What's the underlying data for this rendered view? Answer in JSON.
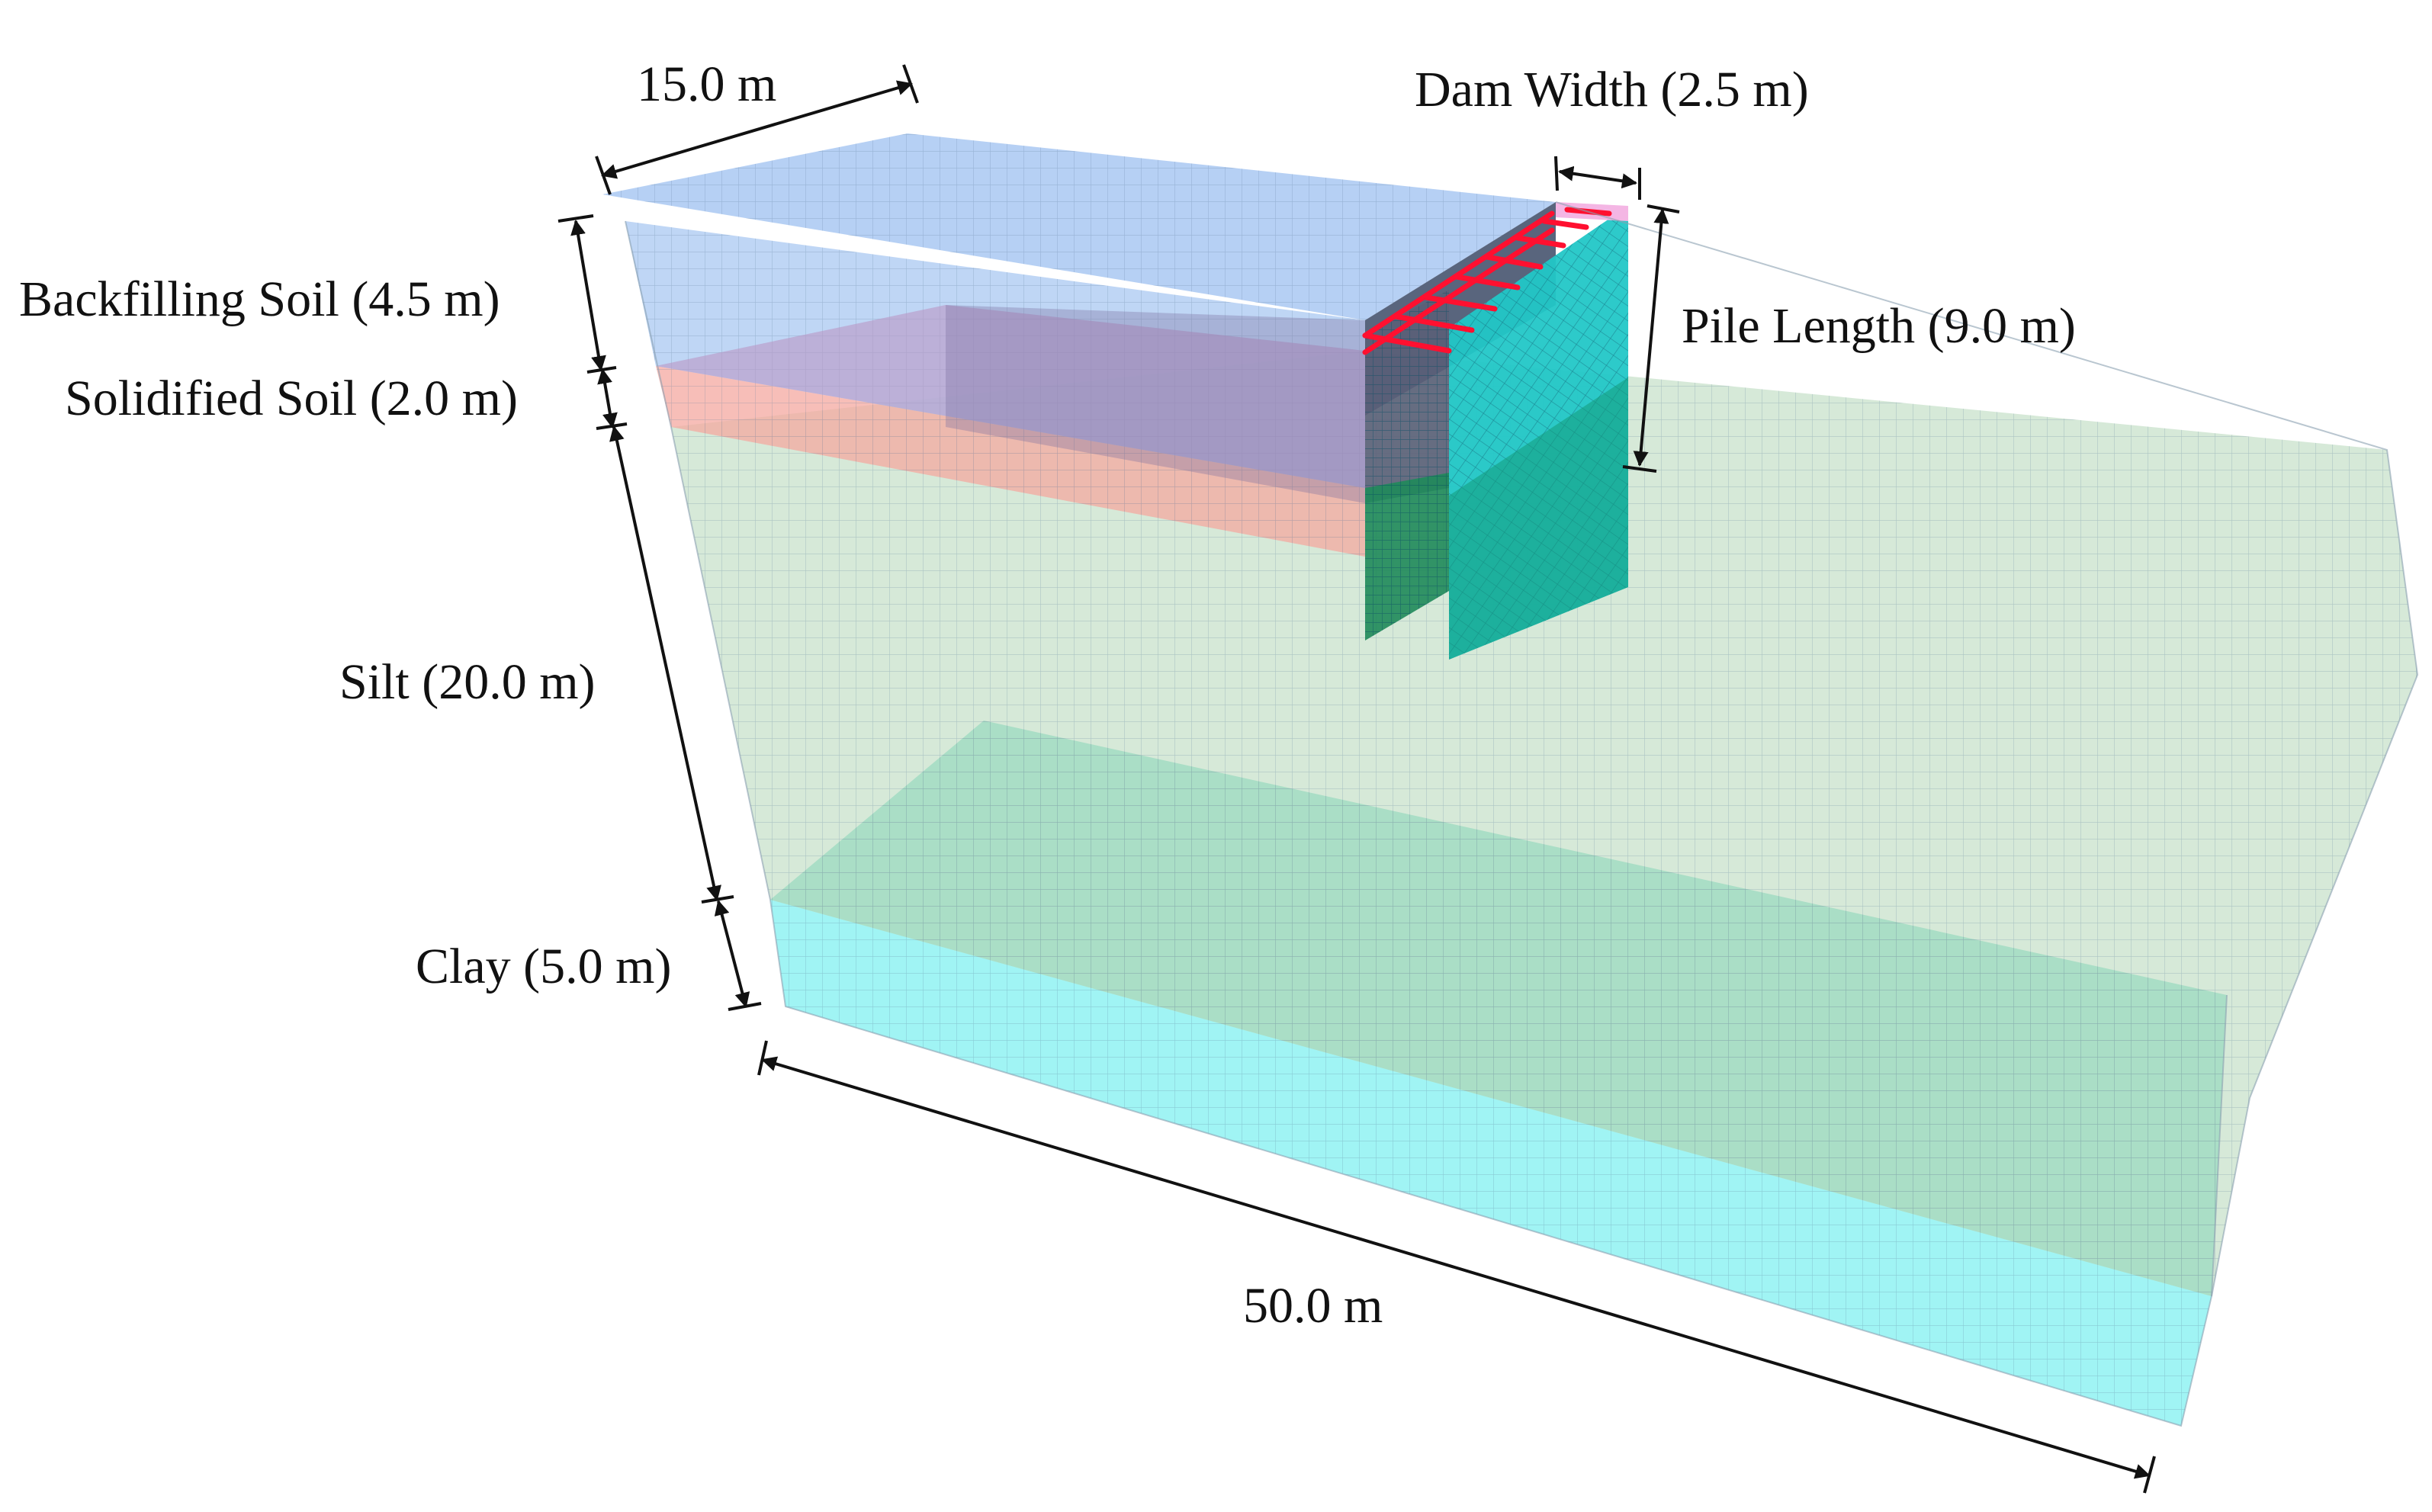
{
  "labels": {
    "width_top": "15.0 m",
    "dam_width": "Dam Width (2.5 m)",
    "backfilling": "Backfilling Soil (4.5 m)",
    "solidified": "Solidified Soil (2.0 m)",
    "pile_length": "Pile Length (9.0 m)",
    "silt": "Silt (20.0 m)",
    "clay": "Clay (5.0 m)",
    "length_bottom": "50.0 m"
  },
  "colors": {
    "backfilling_soil": "#a9c8f2",
    "solidified_soil": "#f4a8a0",
    "silt": "#b5d7b8",
    "clay": "#8ff2f2",
    "pile_wall": "#22c7c7",
    "tie_rods": "#ff1030",
    "mesh_line": "#6b8fa8",
    "dimension_line": "#111111"
  }
}
